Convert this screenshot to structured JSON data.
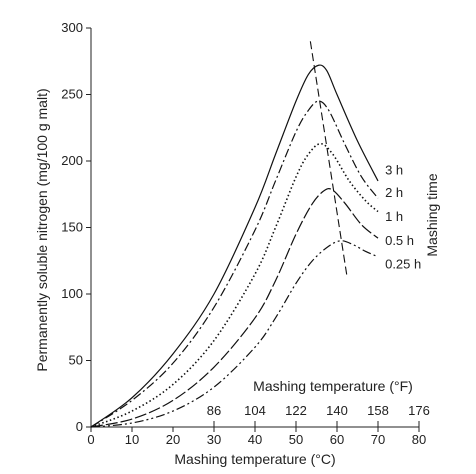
{
  "chart_data": {
    "type": "line",
    "title": "",
    "xlabel": "Mashing temperature (°C)",
    "ylabel": "Permanently soluble nitrogen (mg/100 g malt)",
    "secondary_xlabel": "Mashing temperature (°F)",
    "legend_title": "Mashing time",
    "xlim": [
      0,
      80
    ],
    "ylim": [
      0,
      300
    ],
    "x_ticks": [
      0,
      10,
      20,
      30,
      40,
      50,
      60,
      70,
      80
    ],
    "y_ticks": [
      0,
      50,
      100,
      150,
      200,
      250,
      300
    ],
    "f_ticks": [
      {
        "label": "86",
        "c": 30
      },
      {
        "label": "104",
        "c": 40
      },
      {
        "label": "122",
        "c": 50
      },
      {
        "label": "140",
        "c": 60
      },
      {
        "label": "158",
        "c": 70
      },
      {
        "label": "176",
        "c": 80
      }
    ],
    "grid": false,
    "series": [
      {
        "name": "3 h",
        "style": "solid",
        "points": [
          [
            0,
            0
          ],
          [
            10,
            22
          ],
          [
            20,
            55
          ],
          [
            30,
            100
          ],
          [
            40,
            165
          ],
          [
            45,
            205
          ],
          [
            50,
            245
          ],
          [
            53,
            265
          ],
          [
            55.5,
            272
          ],
          [
            57.5,
            268
          ],
          [
            60,
            250
          ],
          [
            65,
            215
          ],
          [
            70,
            185
          ]
        ]
      },
      {
        "name": "2 h",
        "style": "dashdot",
        "points": [
          [
            0,
            0
          ],
          [
            10,
            20
          ],
          [
            20,
            48
          ],
          [
            30,
            90
          ],
          [
            40,
            148
          ],
          [
            45,
            185
          ],
          [
            50,
            222
          ],
          [
            53,
            238
          ],
          [
            55.5,
            245
          ],
          [
            58,
            238
          ],
          [
            62,
            212
          ],
          [
            66,
            188
          ],
          [
            70,
            172
          ]
        ]
      },
      {
        "name": "1 h",
        "style": "dotted",
        "points": [
          [
            0,
            0
          ],
          [
            10,
            12
          ],
          [
            20,
            32
          ],
          [
            30,
            65
          ],
          [
            40,
            115
          ],
          [
            45,
            150
          ],
          [
            50,
            188
          ],
          [
            53,
            205
          ],
          [
            56,
            213
          ],
          [
            59,
            205
          ],
          [
            63,
            185
          ],
          [
            67,
            170
          ],
          [
            70,
            162
          ]
        ]
      },
      {
        "name": "0.5 h",
        "style": "longdash",
        "points": [
          [
            0,
            0
          ],
          [
            10,
            6
          ],
          [
            20,
            20
          ],
          [
            30,
            45
          ],
          [
            40,
            82
          ],
          [
            45,
            110
          ],
          [
            50,
            145
          ],
          [
            54,
            168
          ],
          [
            57,
            178
          ],
          [
            59,
            178
          ],
          [
            62,
            168
          ],
          [
            66,
            152
          ],
          [
            70,
            142
          ]
        ]
      },
      {
        "name": "0.25 h",
        "style": "dashdotdot",
        "points": [
          [
            0,
            0
          ],
          [
            10,
            3
          ],
          [
            20,
            12
          ],
          [
            30,
            30
          ],
          [
            40,
            60
          ],
          [
            45,
            82
          ],
          [
            50,
            108
          ],
          [
            54,
            125
          ],
          [
            58,
            136
          ],
          [
            61,
            140
          ],
          [
            64,
            137
          ],
          [
            67,
            132
          ],
          [
            70,
            128
          ]
        ]
      }
    ],
    "peak_line": {
      "style": "dashed",
      "points": [
        [
          53.5,
          290
        ],
        [
          62.5,
          112
        ]
      ]
    },
    "label_positions": [
      {
        "name": "3 h",
        "x": 71,
        "y": 193
      },
      {
        "name": "2 h",
        "x": 71,
        "y": 176
      },
      {
        "name": "1 h",
        "x": 71,
        "y": 158
      },
      {
        "name": "0.5 h",
        "x": 71,
        "y": 140
      },
      {
        "name": "0.25 h",
        "x": 71,
        "y": 122
      }
    ]
  }
}
